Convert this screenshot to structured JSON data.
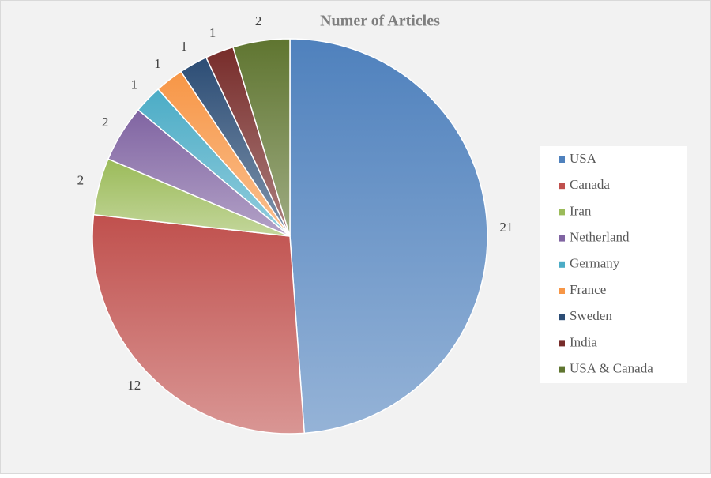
{
  "chart_data": {
    "type": "pie",
    "title": "Numer of Articles",
    "categories": [
      "USA",
      "Canada",
      "Iran",
      "Netherland",
      "Germany",
      "France",
      "Sweden",
      "India",
      "USA & Canada"
    ],
    "values": [
      21,
      12,
      2,
      2,
      1,
      1,
      1,
      1,
      2
    ],
    "colors": [
      "#4f81bd",
      "#c0504d",
      "#9bbb59",
      "#8064a2",
      "#4bacc6",
      "#f79646",
      "#2c4d75",
      "#772c2a",
      "#5f7530"
    ],
    "legend": "right"
  }
}
